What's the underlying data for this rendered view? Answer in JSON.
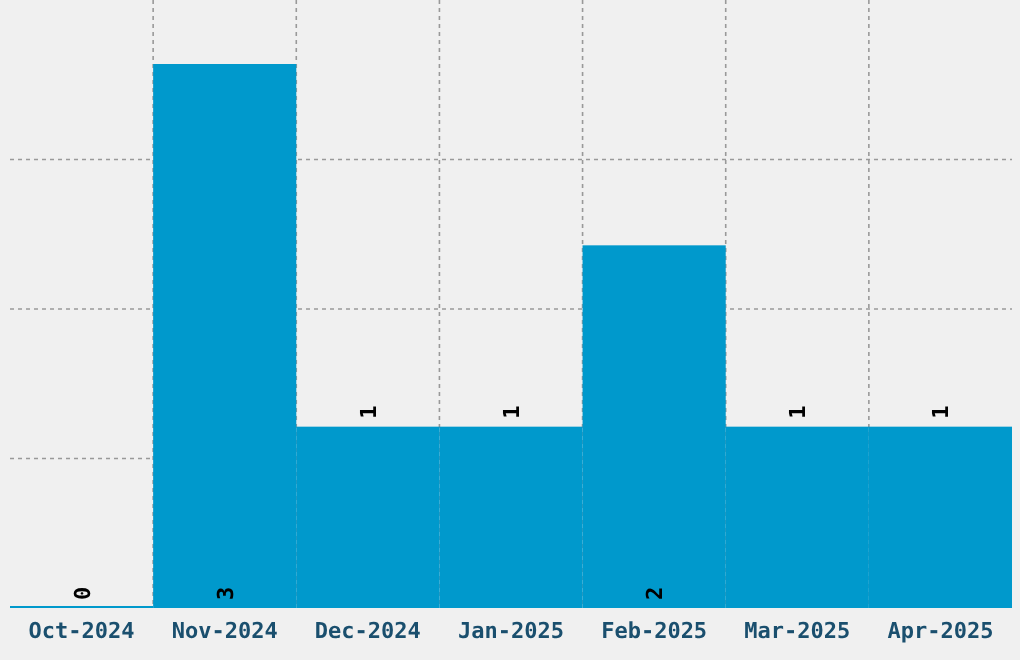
{
  "chart_data": {
    "type": "bar",
    "categories": [
      "Oct-2024",
      "Nov-2024",
      "Dec-2024",
      "Jan-2025",
      "Feb-2025",
      "Mar-2025",
      "Apr-2025"
    ],
    "values": [
      0,
      3,
      1,
      1,
      2,
      1,
      1
    ],
    "color": "#0099cc",
    "data_labels": true,
    "grid": true,
    "tick_labels": "x"
  }
}
